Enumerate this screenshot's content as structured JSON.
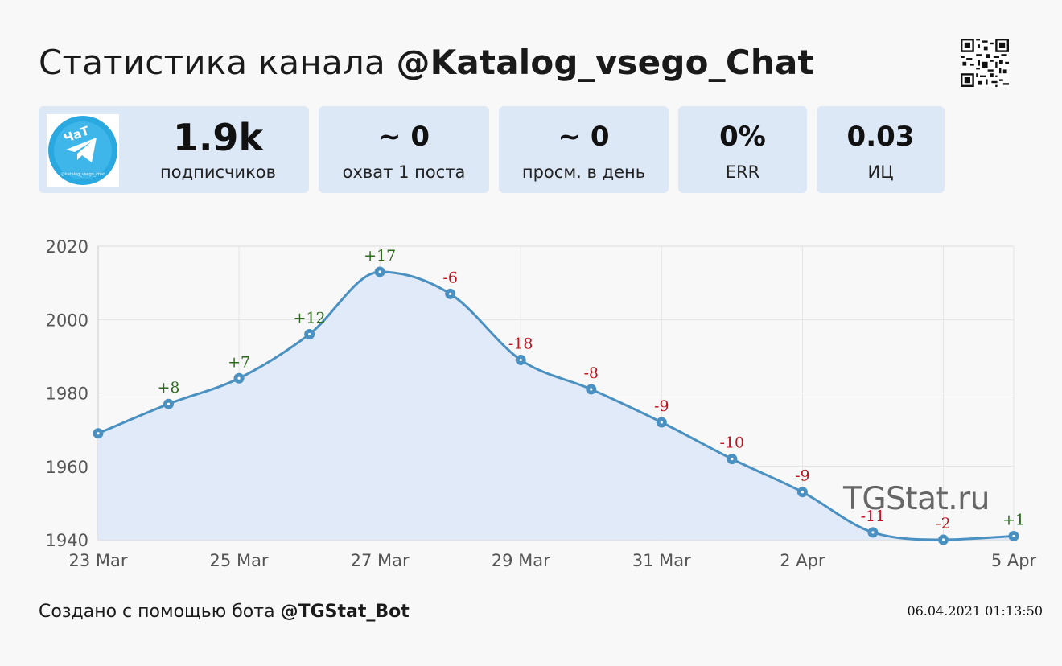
{
  "header": {
    "title_prefix": "Статистика канала ",
    "channel": "@Katalog_vsego_Chat"
  },
  "stats": [
    {
      "value": "1.9k",
      "label": "подписчиков"
    },
    {
      "value": "~ 0",
      "label": "охват 1 поста"
    },
    {
      "value": "~ 0",
      "label": "просм. в день"
    },
    {
      "value": "0%",
      "label": "ERR"
    },
    {
      "value": "0.03",
      "label": "ИЦ"
    }
  ],
  "avatar": {
    "text": "ЧаТ",
    "icon": "telegram-plane-icon",
    "caption": "@katalog_vsego_chat"
  },
  "watermark": "TGStat.ru",
  "footer": {
    "prefix": "Создано с помощью бота ",
    "bot": "@TGStat_Bot",
    "timestamp": "06.04.2021 01:13:50"
  },
  "colors": {
    "line": "#4a90c0",
    "fill": "#dfe9f8",
    "positive": "#2e6b1e",
    "negative": "#c0141e",
    "card": "#dde8f7"
  },
  "chart_data": {
    "type": "area",
    "x": [
      "23 Mar",
      "24 Mar",
      "25 Mar",
      "26 Mar",
      "27 Mar",
      "28 Mar",
      "29 Mar",
      "30 Mar",
      "31 Mar",
      "1 Apr",
      "2 Apr",
      "3 Apr",
      "4 Apr",
      "5 Apr"
    ],
    "values": [
      1969,
      1977,
      1984,
      1996,
      2013,
      2007,
      1989,
      1981,
      1972,
      1962,
      1953,
      1942,
      1940,
      1941
    ],
    "point_labels": [
      "",
      "+8",
      "+7",
      "+12",
      "+17",
      "-6",
      "-18",
      "-8",
      "-9",
      "-10",
      "-9",
      "-11",
      "-2",
      "+1"
    ],
    "x_ticks": [
      "23 Mar",
      "25 Mar",
      "27 Mar",
      "29 Mar",
      "31 Mar",
      "2 Apr",
      "5 Apr"
    ],
    "y_ticks": [
      1940,
      1960,
      1980,
      2000,
      2020
    ],
    "ylim": [
      1940,
      2020
    ],
    "grid": true,
    "title": "",
    "xlabel": "",
    "ylabel": ""
  }
}
